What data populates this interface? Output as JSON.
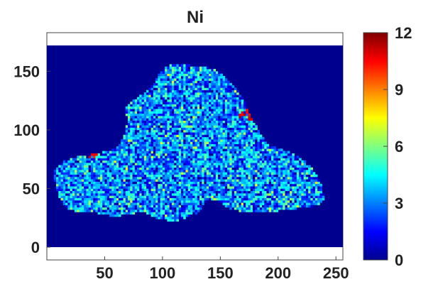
{
  "chart_data": {
    "type": "heatmap",
    "title": "Ni",
    "xlabel": "",
    "ylabel": "",
    "xlim": [
      0,
      256
    ],
    "ylim": [
      0,
      172
    ],
    "x_ticks": [
      50,
      100,
      150,
      200,
      250
    ],
    "y_ticks": [
      0,
      50,
      100,
      150
    ],
    "background_value": 0,
    "colormap": "jet",
    "colorbar": {
      "range": [
        0,
        12
      ],
      "ticks": [
        0,
        3,
        6,
        9,
        12
      ],
      "position": "right"
    },
    "region_outline": [
      [
        6,
        64
      ],
      [
        12,
        72
      ],
      [
        28,
        78
      ],
      [
        45,
        80
      ],
      [
        60,
        84
      ],
      [
        64,
        88
      ],
      [
        70,
        108
      ],
      [
        68,
        118
      ],
      [
        74,
        125
      ],
      [
        88,
        134
      ],
      [
        96,
        146
      ],
      [
        104,
        154
      ],
      [
        110,
        156
      ],
      [
        140,
        154
      ],
      [
        152,
        148
      ],
      [
        162,
        138
      ],
      [
        170,
        126
      ],
      [
        176,
        112
      ],
      [
        190,
        88
      ],
      [
        212,
        80
      ],
      [
        226,
        72
      ],
      [
        234,
        60
      ],
      [
        238,
        52
      ],
      [
        240,
        40
      ],
      [
        236,
        36
      ],
      [
        224,
        34
      ],
      [
        210,
        32
      ],
      [
        190,
        30
      ],
      [
        172,
        30
      ],
      [
        160,
        32
      ],
      [
        146,
        40
      ],
      [
        140,
        42
      ],
      [
        130,
        28
      ],
      [
        112,
        22
      ],
      [
        96,
        24
      ],
      [
        84,
        30
      ],
      [
        68,
        28
      ],
      [
        60,
        26
      ],
      [
        50,
        28
      ],
      [
        40,
        30
      ],
      [
        28,
        30
      ],
      [
        22,
        32
      ],
      [
        16,
        34
      ],
      [
        12,
        40
      ],
      [
        8,
        52
      ],
      [
        6,
        60
      ]
    ],
    "inside_value_mean": 3.2,
    "inside_value_spread": 1.6,
    "hotspots": [
      [
        168,
        112
      ],
      [
        176,
        110
      ],
      [
        174,
        116
      ],
      [
        40,
        80
      ],
      [
        38,
        78
      ]
    ]
  }
}
